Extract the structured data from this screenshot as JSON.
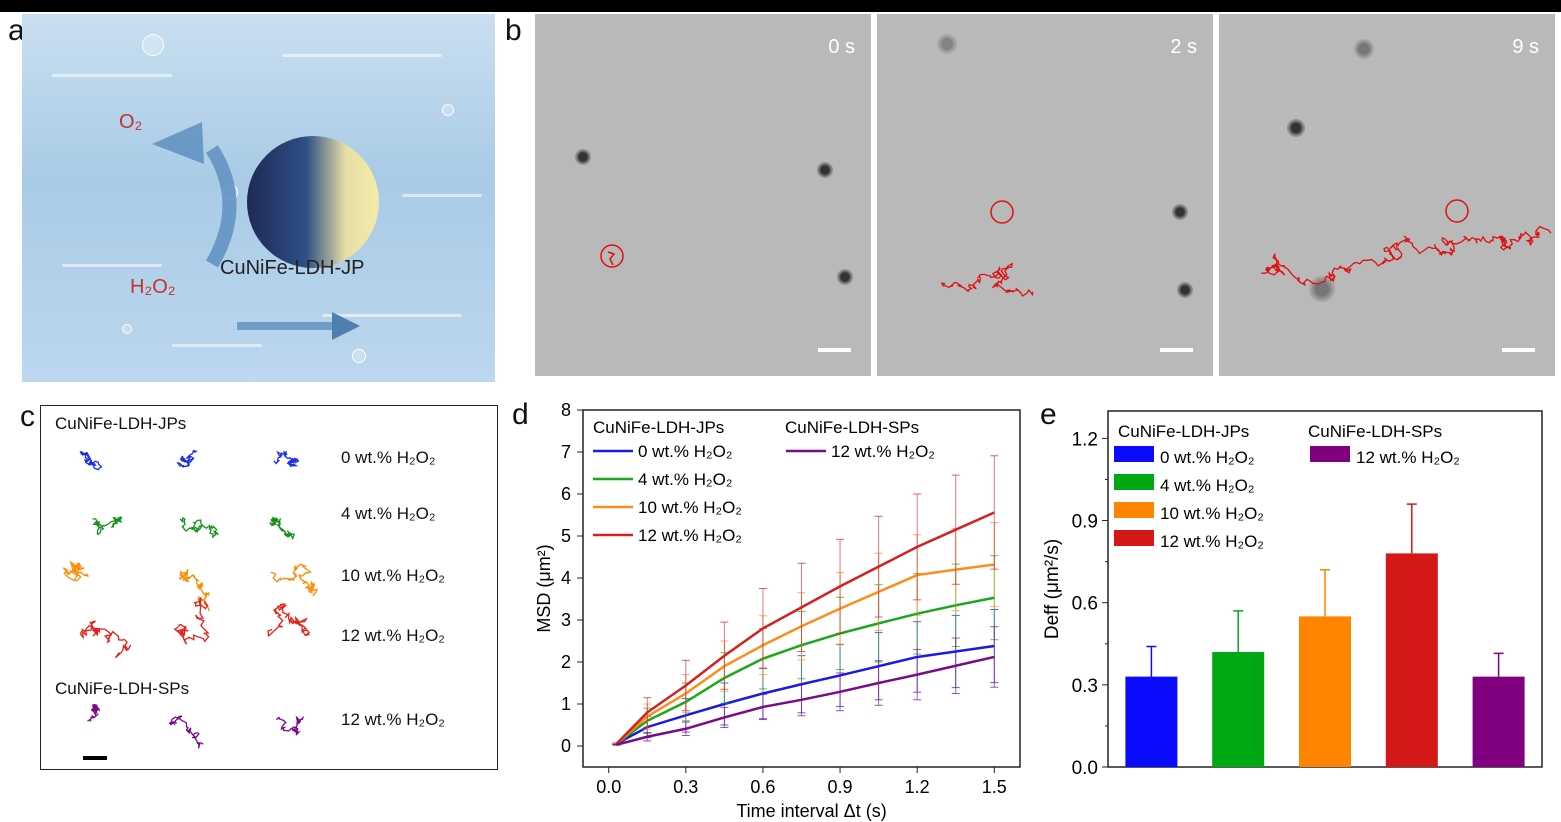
{
  "panels": {
    "a": {
      "label": "a",
      "o2": "O₂",
      "h2o2": "H₂O₂",
      "particle": "CuNiFe-LDH-JP"
    },
    "b": {
      "label": "b",
      "frames": [
        {
          "time": "0 s"
        },
        {
          "time": "2 s"
        },
        {
          "time": "9 s"
        }
      ]
    },
    "c": {
      "label": "c",
      "group1": "CuNiFe-LDH-JPs",
      "group2": "CuNiFe-LDH-SPs",
      "rows": [
        {
          "label": "0 wt.% H₂O₂",
          "color": "#1a2ee8"
        },
        {
          "label": "4 wt.% H₂O₂",
          "color": "#16921a"
        },
        {
          "label": "10 wt.% H₂O₂",
          "color": "#ff8a00"
        },
        {
          "label": "12 wt.% H₂O₂",
          "color": "#e8201a"
        },
        {
          "label": "12 wt.% H₂O₂",
          "color": "#7a0a86"
        }
      ]
    },
    "d": {
      "label": "d"
    },
    "e": {
      "label": "e"
    }
  },
  "chart_data": [
    {
      "type": "line",
      "panel": "d",
      "xlabel": "Time interval Δt (s)",
      "ylabel": "MSD (μm²)",
      "xlim": [
        -0.1,
        1.6
      ],
      "ylim": [
        -0.5,
        8
      ],
      "xticks": [
        "0.0",
        "0.3",
        "0.6",
        "0.9",
        "1.2",
        "1.5"
      ],
      "yticks": [
        "0",
        "1",
        "2",
        "3",
        "4",
        "5",
        "6",
        "7",
        "8"
      ],
      "legend_groups": [
        "CuNiFe-LDH-JPs",
        "CuNiFe-LDH-SPs"
      ],
      "x": [
        0.03,
        0.15,
        0.3,
        0.45,
        0.6,
        0.75,
        0.9,
        1.05,
        1.2,
        1.35,
        1.5
      ],
      "series": [
        {
          "name": "0 wt.% H₂O₂",
          "group": "CuNiFe-LDH-JPs",
          "color": "#1a1ae8",
          "values": [
            0.05,
            0.45,
            0.73,
            1.0,
            1.25,
            1.47,
            1.68,
            1.9,
            2.12,
            2.25,
            2.38
          ],
          "error": [
            0.02,
            0.25,
            0.4,
            0.5,
            0.6,
            0.68,
            0.74,
            0.8,
            0.84,
            0.86,
            0.87
          ]
        },
        {
          "name": "4 wt.% H₂O₂",
          "group": "CuNiFe-LDH-JPs",
          "color": "#18a818",
          "values": [
            0.05,
            0.6,
            1.05,
            1.62,
            2.08,
            2.4,
            2.68,
            2.92,
            3.15,
            3.35,
            3.53
          ],
          "error": [
            0.02,
            0.3,
            0.45,
            0.6,
            0.72,
            0.8,
            0.86,
            0.92,
            0.96,
            0.98,
            1.0
          ]
        },
        {
          "name": "10 wt.% H₂O₂",
          "group": "CuNiFe-LDH-JPs",
          "color": "#ff8c1a",
          "values": [
            0.05,
            0.7,
            1.25,
            1.9,
            2.4,
            2.85,
            3.27,
            3.67,
            4.07,
            4.2,
            4.32
          ],
          "error": [
            0.02,
            0.3,
            0.45,
            0.6,
            0.7,
            0.8,
            0.86,
            0.92,
            0.96,
            0.98,
            1.0
          ]
        },
        {
          "name": "12 wt.% H₂O₂",
          "group": "CuNiFe-LDH-JPs",
          "color": "#d42020",
          "values": [
            0.05,
            0.8,
            1.44,
            2.15,
            2.8,
            3.3,
            3.8,
            4.27,
            4.74,
            5.15,
            5.56
          ],
          "error": [
            0.02,
            0.35,
            0.6,
            0.8,
            0.95,
            1.05,
            1.12,
            1.2,
            1.26,
            1.3,
            1.35
          ]
        },
        {
          "name": "12 wt.% H₂O₂",
          "group": "CuNiFe-LDH-SPs",
          "color": "#7a0a86",
          "values": [
            0.03,
            0.22,
            0.41,
            0.68,
            0.93,
            1.1,
            1.29,
            1.5,
            1.7,
            1.91,
            2.12
          ],
          "error": [
            0.01,
            0.1,
            0.16,
            0.24,
            0.3,
            0.38,
            0.45,
            0.53,
            0.6,
            0.66,
            0.72
          ]
        }
      ]
    },
    {
      "type": "bar",
      "panel": "e",
      "ylabel": "Deff (μm²/s)",
      "ylim": [
        0,
        1.3
      ],
      "yticks": [
        "0.0",
        "0.3",
        "0.6",
        "0.9",
        "1.2"
      ],
      "legend_groups": [
        "CuNiFe-LDH-JPs",
        "CuNiFe-LDH-SPs"
      ],
      "categories": [
        "0 wt.% H₂O₂",
        "4 wt.% H₂O₂",
        "10 wt.% H₂O₂",
        "12 wt.% H₂O₂",
        "12 wt.% H₂O₂"
      ],
      "groups": [
        "CuNiFe-LDH-JPs",
        "CuNiFe-LDH-JPs",
        "CuNiFe-LDH-JPs",
        "CuNiFe-LDH-JPs",
        "CuNiFe-LDH-SPs"
      ],
      "values": [
        0.33,
        0.42,
        0.55,
        0.78,
        0.33
      ],
      "error_upper": [
        0.44,
        0.57,
        0.72,
        0.96,
        0.415
      ],
      "colors": [
        "#0a0aff",
        "#00a814",
        "#ff8400",
        "#d41818",
        "#800080"
      ]
    }
  ]
}
